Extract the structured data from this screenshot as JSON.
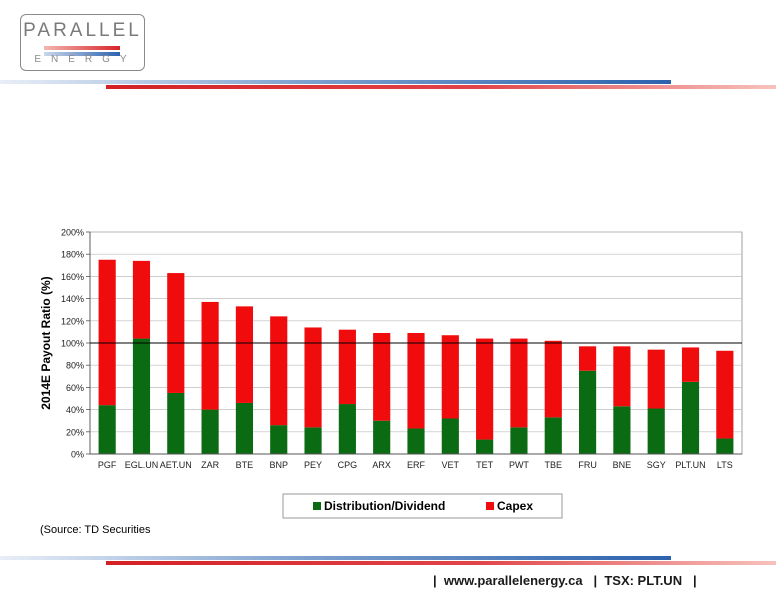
{
  "logo": {
    "top_text": "PARALLEL",
    "bottom_text": "ENERGY"
  },
  "colors": {
    "distribution": "#0a6b12",
    "capex": "#f00c0c",
    "brand_red": "#d32126",
    "brand_blue": "#2d62ad"
  },
  "chart_data": {
    "type": "bar",
    "stacked": true,
    "ylabel": "2014E Payout Ratio (%)",
    "xlabel": "",
    "ylim": [
      0,
      200
    ],
    "yticks": [
      0,
      20,
      40,
      60,
      80,
      100,
      120,
      140,
      160,
      180,
      200
    ],
    "ytick_labels": [
      "0%",
      "20%",
      "40%",
      "60%",
      "80%",
      "100%",
      "120%",
      "140%",
      "160%",
      "180%",
      "200%"
    ],
    "reference_line": 100,
    "grid": true,
    "legend_position": "bottom",
    "categories": [
      "PGF",
      "EGL.UN",
      "AET.UN",
      "ZAR",
      "BTE",
      "BNP",
      "PEY",
      "CPG",
      "ARX",
      "ERF",
      "VET",
      "TET",
      "PWT",
      "TBE",
      "FRU",
      "BNE",
      "SGY",
      "PLT.UN",
      "LTS"
    ],
    "series": [
      {
        "name": "Distribution/Dividend",
        "values": [
          44,
          104,
          55,
          40,
          46,
          26,
          24,
          45,
          30,
          23,
          32,
          13,
          24,
          33,
          75,
          43,
          41,
          65,
          14
        ]
      },
      {
        "name": "Capex",
        "values": [
          131,
          70,
          108,
          97,
          87,
          98,
          90,
          67,
          79,
          86,
          75,
          91,
          80,
          69,
          22,
          54,
          53,
          31,
          79
        ]
      }
    ]
  },
  "source": "(Source: TD Securities",
  "footer": {
    "sep": "|",
    "website": "www.parallelenergy.ca",
    "ticker": "TSX: PLT.UN"
  }
}
